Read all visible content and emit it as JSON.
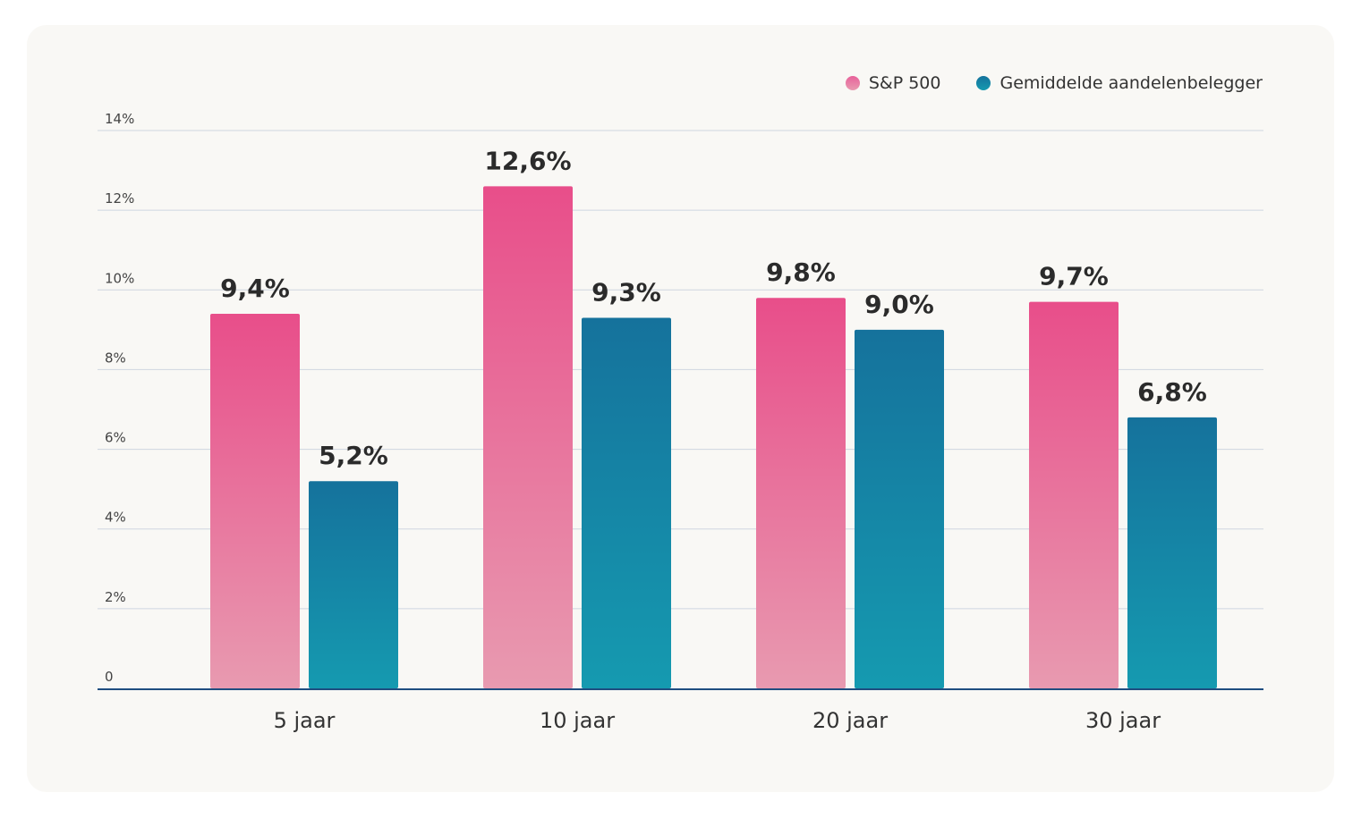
{
  "chart_data": {
    "type": "bar",
    "categories": [
      "5 jaar",
      "10 jaar",
      "20 jaar",
      "30 jaar"
    ],
    "series": [
      {
        "name": "S&P 500",
        "values": [
          9.4,
          12.6,
          9.8,
          9.7
        ],
        "labels": [
          "9,4%",
          "12,6%",
          "9,8%",
          "9,7%"
        ],
        "color_top": "#e84e8a",
        "color_bottom": "#e89ab0"
      },
      {
        "name": "Gemiddelde aandelenbelegger",
        "values": [
          5.2,
          9.3,
          9.0,
          6.8
        ],
        "labels": [
          "5,2%",
          "9,3%",
          "9,0%",
          "6,8%"
        ],
        "color_top": "#15729c",
        "color_bottom": "#159ab0"
      }
    ],
    "yticks": [
      0,
      2,
      4,
      6,
      8,
      10,
      12,
      14
    ],
    "ytick_labels": [
      "0",
      "2%",
      "4%",
      "6%",
      "8%",
      "10%",
      "12%",
      "14%"
    ],
    "ylim": [
      0,
      14
    ],
    "grid": true,
    "legend_position": "top-right",
    "xlabel": "",
    "ylabel": ""
  }
}
